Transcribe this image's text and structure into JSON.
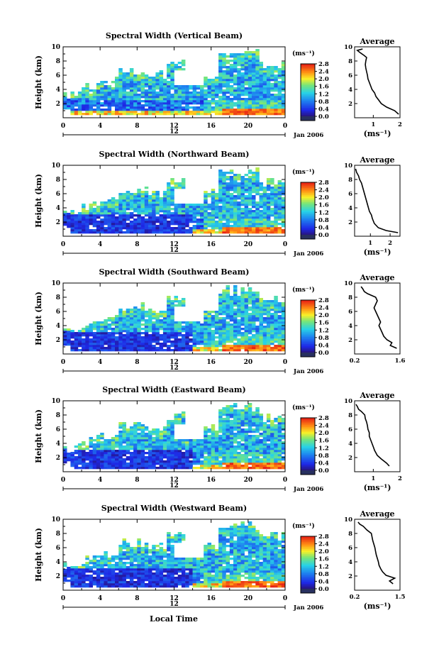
{
  "chart_data": [
    {
      "type": "heatmap",
      "title": "Spectral Width (Vertical Beam)",
      "ylabel": "Height (km)",
      "x_ticks": [
        "0",
        "4",
        "8",
        "12",
        "16",
        "20",
        "0"
      ],
      "xlim": [
        0,
        24
      ],
      "y_ticks": [
        "2",
        "4",
        "6",
        "8",
        "10"
      ],
      "ylim": [
        0,
        10
      ],
      "date_marker": "12",
      "date_label": "Jan 2006",
      "colorbar": {
        "unit": "(ms⁻¹)",
        "ticks": [
          "0.0",
          "0.4",
          "0.8",
          "1.2",
          "1.6",
          "2.0",
          "2.4",
          "2.8"
        ],
        "range": [
          0,
          2.8
        ]
      },
      "average_profile": {
        "title": "Average",
        "xlabel": "(ms⁻¹)",
        "x_ticks": [
          "1",
          "2"
        ],
        "xlim": [
          0.3,
          2.0
        ],
        "y_ticks": [
          "2",
          "4",
          "6",
          "8",
          "10"
        ],
        "ylim": [
          0,
          10
        ],
        "points": [
          [
            1.95,
            0.5
          ],
          [
            1.8,
            1.0
          ],
          [
            1.5,
            1.5
          ],
          [
            1.3,
            2.0
          ],
          [
            1.2,
            2.5
          ],
          [
            1.1,
            3.0
          ],
          [
            1.05,
            3.5
          ],
          [
            0.95,
            4.0
          ],
          [
            0.9,
            4.5
          ],
          [
            0.85,
            5.0
          ],
          [
            0.8,
            5.5
          ],
          [
            0.78,
            6.0
          ],
          [
            0.75,
            6.5
          ],
          [
            0.72,
            7.0
          ],
          [
            0.7,
            7.5
          ],
          [
            0.72,
            8.0
          ],
          [
            0.75,
            8.5
          ],
          [
            0.65,
            8.8
          ],
          [
            0.5,
            9.2
          ],
          [
            0.4,
            9.5
          ],
          [
            0.6,
            9.7
          ]
        ]
      }
    },
    {
      "type": "heatmap",
      "title": "Spectral Width (Northward Beam)",
      "ylabel": "Height (km)",
      "x_ticks": [
        "0",
        "4",
        "8",
        "12",
        "16",
        "20",
        "0"
      ],
      "xlim": [
        0,
        24
      ],
      "y_ticks": [
        "2",
        "4",
        "6",
        "8",
        "10"
      ],
      "ylim": [
        0,
        10
      ],
      "date_marker": "12",
      "date_label": "Jan 2006",
      "colorbar": {
        "unit": "(ms⁻¹)",
        "ticks": [
          "0.0",
          "0.4",
          "0.8",
          "1.2",
          "1.6",
          "2.0",
          "2.4",
          "2.8"
        ],
        "range": [
          0,
          2.8
        ]
      },
      "average_profile": {
        "title": "Average",
        "xlabel": "(ms⁻¹)",
        "x_ticks": [
          "1",
          "2"
        ],
        "xlim": [
          0.2,
          2.5
        ],
        "y_ticks": [
          "2",
          "4",
          "6",
          "8",
          "10"
        ],
        "ylim": [
          0,
          10
        ],
        "points": [
          [
            2.4,
            0.5
          ],
          [
            1.8,
            0.8
          ],
          [
            1.4,
            1.2
          ],
          [
            1.2,
            1.8
          ],
          [
            1.1,
            2.5
          ],
          [
            1.05,
            3.0
          ],
          [
            0.95,
            3.5
          ],
          [
            0.9,
            4.0
          ],
          [
            0.85,
            4.5
          ],
          [
            0.8,
            5.0
          ],
          [
            0.75,
            5.5
          ],
          [
            0.7,
            6.0
          ],
          [
            0.65,
            6.5
          ],
          [
            0.6,
            7.0
          ],
          [
            0.55,
            7.5
          ],
          [
            0.45,
            8.0
          ],
          [
            0.4,
            8.5
          ],
          [
            0.3,
            9.0
          ],
          [
            0.25,
            9.5
          ]
        ]
      }
    },
    {
      "type": "heatmap",
      "title": "Spectral Width (Southward Beam)",
      "ylabel": "Height (km)",
      "x_ticks": [
        "0",
        "4",
        "8",
        "12",
        "16",
        "20",
        "0"
      ],
      "xlim": [
        0,
        24
      ],
      "y_ticks": [
        "2",
        "4",
        "6",
        "8",
        "10"
      ],
      "ylim": [
        0,
        10
      ],
      "date_marker": "12",
      "date_label": "Jan 2006",
      "colorbar": {
        "unit": "(ms⁻¹)",
        "ticks": [
          "0.0",
          "0.4",
          "0.8",
          "1.2",
          "1.6",
          "2.0",
          "2.4",
          "2.8"
        ],
        "range": [
          0,
          2.8
        ]
      },
      "average_profile": {
        "title": "Average",
        "xlabel": "",
        "x_ticks": [
          "0.2",
          "1.6"
        ],
        "xlim": [
          0.2,
          1.6
        ],
        "y_ticks": [
          "2",
          "4",
          "6",
          "8",
          "10"
        ],
        "ylim": [
          0,
          10
        ],
        "points": [
          [
            1.5,
            0.8
          ],
          [
            1.3,
            1.2
          ],
          [
            1.35,
            1.6
          ],
          [
            1.2,
            2.0
          ],
          [
            1.1,
            2.5
          ],
          [
            1.05,
            3.0
          ],
          [
            1.0,
            3.5
          ],
          [
            0.95,
            4.0
          ],
          [
            1.0,
            4.5
          ],
          [
            0.95,
            5.0
          ],
          [
            0.9,
            5.5
          ],
          [
            0.85,
            6.0
          ],
          [
            0.8,
            6.5
          ],
          [
            0.85,
            7.0
          ],
          [
            0.9,
            7.5
          ],
          [
            0.85,
            8.0
          ],
          [
            0.6,
            8.5
          ],
          [
            0.5,
            8.8
          ],
          [
            0.45,
            9.2
          ],
          [
            0.4,
            9.5
          ]
        ]
      }
    },
    {
      "type": "heatmap",
      "title": "Spectral Width (Eastward Beam)",
      "ylabel": "Height (km)",
      "x_ticks": [
        "0",
        "4",
        "8",
        "12",
        "16",
        "20",
        "0"
      ],
      "xlim": [
        0,
        24
      ],
      "y_ticks": [
        "2",
        "4",
        "6",
        "8",
        "10"
      ],
      "ylim": [
        0,
        10
      ],
      "date_marker": "12",
      "date_label": "Jan 2006",
      "colorbar": {
        "unit": "(ms⁻¹)",
        "ticks": [
          "0.0",
          "0.4",
          "0.8",
          "1.2",
          "1.6",
          "2.0",
          "2.4",
          "2.8"
        ],
        "range": [
          0,
          2.8
        ]
      },
      "average_profile": {
        "title": "Average",
        "xlabel": "(ms⁻¹)",
        "x_ticks": [
          "1",
          "2"
        ],
        "xlim": [
          0.3,
          2.0
        ],
        "y_ticks": [
          "2",
          "4",
          "6",
          "8",
          "10"
        ],
        "ylim": [
          0,
          10
        ],
        "points": [
          [
            1.6,
            0.8
          ],
          [
            1.5,
            1.2
          ],
          [
            1.3,
            1.8
          ],
          [
            1.15,
            2.3
          ],
          [
            1.05,
            3.0
          ],
          [
            1.0,
            3.5
          ],
          [
            0.95,
            4.0
          ],
          [
            0.9,
            4.5
          ],
          [
            0.85,
            5.0
          ],
          [
            0.85,
            5.5
          ],
          [
            0.8,
            6.0
          ],
          [
            0.78,
            6.5
          ],
          [
            0.75,
            7.0
          ],
          [
            0.7,
            7.5
          ],
          [
            0.68,
            8.0
          ],
          [
            0.55,
            8.5
          ],
          [
            0.45,
            8.8
          ],
          [
            0.4,
            9.2
          ],
          [
            0.35,
            9.5
          ]
        ]
      }
    },
    {
      "type": "heatmap",
      "title": "Spectral Width (Westward Beam)",
      "ylabel": "Height (km)",
      "x_ticks": [
        "0",
        "4",
        "8",
        "12",
        "16",
        "20",
        "0"
      ],
      "xlim": [
        0,
        24
      ],
      "y_ticks": [
        "2",
        "4",
        "6",
        "8",
        "10"
      ],
      "ylim": [
        0,
        10
      ],
      "date_marker": "12",
      "date_label": "Jan 2006",
      "colorbar": {
        "unit": "(ms⁻¹)",
        "ticks": [
          "0.0",
          "0.4",
          "0.8",
          "1.2",
          "1.6",
          "2.0",
          "2.4",
          "2.8"
        ],
        "range": [
          0,
          2.8
        ]
      },
      "average_profile": {
        "title": "Average",
        "xlabel": "(ms⁻¹)",
        "x_ticks": [
          "0.2",
          "1.5"
        ],
        "xlim": [
          0.2,
          1.5
        ],
        "y_ticks": [
          "2",
          "4",
          "6",
          "8",
          "10"
        ],
        "ylim": [
          0,
          10
        ],
        "points": [
          [
            1.3,
            0.9
          ],
          [
            1.2,
            1.3
          ],
          [
            1.35,
            1.7
          ],
          [
            1.1,
            2.1
          ],
          [
            1.0,
            2.6
          ],
          [
            0.95,
            3.0
          ],
          [
            0.9,
            3.5
          ],
          [
            0.88,
            4.0
          ],
          [
            0.85,
            4.5
          ],
          [
            0.82,
            5.0
          ],
          [
            0.8,
            5.5
          ],
          [
            0.78,
            6.0
          ],
          [
            0.75,
            6.5
          ],
          [
            0.72,
            7.0
          ],
          [
            0.7,
            7.5
          ],
          [
            0.68,
            8.0
          ],
          [
            0.55,
            8.5
          ],
          [
            0.45,
            9.0
          ],
          [
            0.35,
            9.3
          ],
          [
            0.3,
            9.6
          ]
        ]
      }
    }
  ],
  "xaxis_label": "Local Time"
}
